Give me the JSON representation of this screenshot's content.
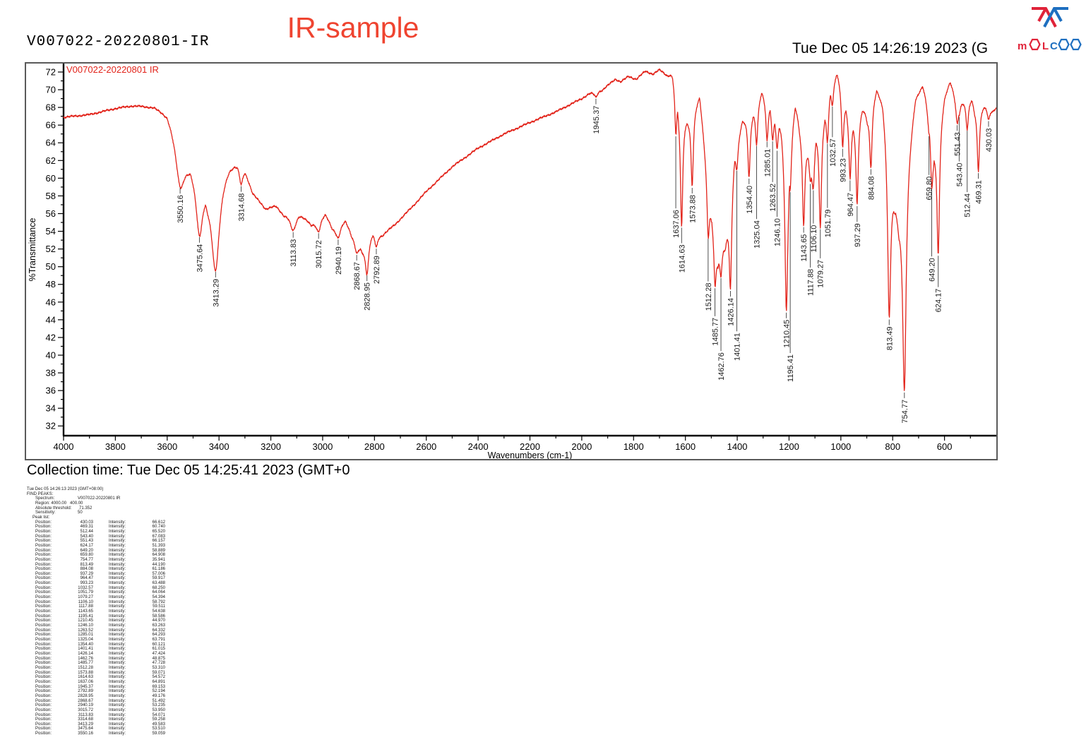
{
  "header": {
    "sample_id": "V007022-20220801-IR",
    "title": "IR-sample",
    "title_color": "#ef4430",
    "datetime": "Tue Dec 05 14:26:19 2023 (G"
  },
  "logo": {
    "name": "MOLCOO",
    "letters": [
      "m",
      "O",
      "L",
      "C",
      "O",
      "O"
    ],
    "red": "#e02339",
    "blue": "#1e6fc0"
  },
  "chart_data": {
    "type": "line",
    "legend": "V007022-20220801 IR",
    "series_name": "V007022-20220801 IR",
    "line_color": "#e2231a",
    "xlabel": "Wavenumbers (cm-1)",
    "ylabel": "%Transmittance",
    "x_range": [
      4000,
      400
    ],
    "x_reversed": true,
    "ylim": [
      32,
      72
    ],
    "x_major_ticks": [
      4000,
      3800,
      3600,
      3400,
      3200,
      3000,
      2800,
      2600,
      2400,
      2200,
      2000,
      1800,
      1600,
      1400,
      1200,
      1000,
      800,
      600
    ],
    "y_major_ticks": [
      32,
      34,
      36,
      38,
      40,
      42,
      44,
      46,
      48,
      50,
      52,
      54,
      56,
      58,
      60,
      62,
      64,
      66,
      68,
      70,
      72
    ],
    "grid": false,
    "legend_position": "top-left",
    "peaks": [
      {
        "position": 430.03,
        "intensity": 66.612
      },
      {
        "position": 469.31,
        "intensity": 60.74
      },
      {
        "position": 512.44,
        "intensity": 65.52
      },
      {
        "position": 543.4,
        "intensity": 67.083
      },
      {
        "position": 551.43,
        "intensity": 66.157
      },
      {
        "position": 624.17,
        "intensity": 51.393
      },
      {
        "position": 649.2,
        "intensity": 58.889
      },
      {
        "position": 659.8,
        "intensity": 64.908
      },
      {
        "position": 754.77,
        "intensity": 35.941
      },
      {
        "position": 813.49,
        "intensity": 44.19
      },
      {
        "position": 884.08,
        "intensity": 61.186
      },
      {
        "position": 937.29,
        "intensity": 57.006
      },
      {
        "position": 964.47,
        "intensity": 59.917
      },
      {
        "position": 993.23,
        "intensity": 63.488
      },
      {
        "position": 1032.57,
        "intensity": 68.25
      },
      {
        "position": 1051.79,
        "intensity": 64.064
      },
      {
        "position": 1079.27,
        "intensity": 54.394
      },
      {
        "position": 1106.1,
        "intensity": 58.792
      },
      {
        "position": 1117.88,
        "intensity": 59.511
      },
      {
        "position": 1143.65,
        "intensity": 54.638
      },
      {
        "position": 1195.41,
        "intensity": 58.586
      },
      {
        "position": 1210.45,
        "intensity": 44.97
      },
      {
        "position": 1246.1,
        "intensity": 63.263
      },
      {
        "position": 1263.52,
        "intensity": 64.332
      },
      {
        "position": 1285.01,
        "intensity": 64.293
      },
      {
        "position": 1325.04,
        "intensity": 63.791
      },
      {
        "position": 1354.4,
        "intensity": 60.121
      },
      {
        "position": 1401.41,
        "intensity": 61.015
      },
      {
        "position": 1426.14,
        "intensity": 47.424
      },
      {
        "position": 1462.76,
        "intensity": 48.875
      },
      {
        "position": 1485.77,
        "intensity": 47.728
      },
      {
        "position": 1512.28,
        "intensity": 53.31
      },
      {
        "position": 1573.88,
        "intensity": 59.071
      },
      {
        "position": 1614.63,
        "intensity": 54.572
      },
      {
        "position": 1637.06,
        "intensity": 64.891
      },
      {
        "position": 1945.37,
        "intensity": 69.153
      },
      {
        "position": 2792.89,
        "intensity": 52.194
      },
      {
        "position": 2828.95,
        "intensity": 49.176
      },
      {
        "position": 2868.67,
        "intensity": 51.492
      },
      {
        "position": 2940.19,
        "intensity": 53.235
      },
      {
        "position": 3015.72,
        "intensity": 53.95
      },
      {
        "position": 3113.83,
        "intensity": 54.071
      },
      {
        "position": 3314.68,
        "intensity": 59.258
      },
      {
        "position": 3413.29,
        "intensity": 49.583
      },
      {
        "position": 3475.64,
        "intensity": 53.51
      },
      {
        "position": 3550.16,
        "intensity": 59.059
      }
    ],
    "baseline_envelope": [
      [
        400,
        67.9
      ],
      [
        415,
        67.6
      ],
      [
        450,
        68.4
      ],
      [
        484,
        68.1
      ],
      [
        494,
        69.1
      ],
      [
        528,
        68.7
      ],
      [
        547,
        68.1
      ],
      [
        578,
        71.1
      ],
      [
        600,
        69.6
      ],
      [
        642,
        63.5
      ],
      [
        655,
        66.3
      ],
      [
        672,
        69.0
      ],
      [
        684,
        70.7
      ],
      [
        712,
        69.6
      ],
      [
        776,
        56.2
      ],
      [
        792,
        57.7
      ],
      [
        838,
        69.1
      ],
      [
        862,
        70.2
      ],
      [
        898,
        67.1
      ],
      [
        916,
        68.2
      ],
      [
        951,
        66.6
      ],
      [
        978,
        68.2
      ],
      [
        1004,
        71.3
      ],
      [
        1015,
        72.1
      ],
      [
        1042,
        70.1
      ],
      [
        1065,
        67.2
      ],
      [
        1096,
        65.2
      ],
      [
        1112,
        61.6
      ],
      [
        1130,
        63.6
      ],
      [
        1160,
        66.2
      ],
      [
        1176,
        68.6
      ],
      [
        1203,
        62.4
      ],
      [
        1230,
        66.6
      ],
      [
        1255,
        67.1
      ],
      [
        1275,
        68.6
      ],
      [
        1305,
        69.9
      ],
      [
        1340,
        67.6
      ],
      [
        1380,
        66.6
      ],
      [
        1412,
        62.6
      ],
      [
        1446,
        52.6
      ],
      [
        1474,
        50.7
      ],
      [
        1500,
        56.2
      ],
      [
        1545,
        69.4
      ],
      [
        1590,
        66.8
      ],
      [
        1625,
        68.2
      ],
      [
        1650,
        71.9
      ],
      [
        1670,
        71.7
      ],
      [
        1700,
        72.3
      ],
      [
        1725,
        71.8
      ],
      [
        1755,
        72.1
      ],
      [
        1790,
        71.2
      ],
      [
        1820,
        71.5
      ],
      [
        1850,
        70.9
      ],
      [
        1870,
        71.2
      ],
      [
        1920,
        70.0
      ],
      [
        1970,
        69.6
      ],
      [
        2000,
        69.0
      ],
      [
        2100,
        67.5
      ],
      [
        2200,
        66.3
      ],
      [
        2300,
        65.0
      ],
      [
        2400,
        63.4
      ],
      [
        2500,
        61.3
      ],
      [
        2600,
        58.5
      ],
      [
        2650,
        56.9
      ],
      [
        2720,
        54.8
      ],
      [
        2770,
        53.6
      ],
      [
        2812,
        53.8
      ],
      [
        2848,
        52.1
      ],
      [
        2888,
        53.6
      ],
      [
        2912,
        55.4
      ],
      [
        2962,
        54.6
      ],
      [
        2990,
        56.0
      ],
      [
        3045,
        54.8
      ],
      [
        3090,
        56.2
      ],
      [
        3150,
        56.0
      ],
      [
        3180,
        56.9
      ],
      [
        3220,
        56.6
      ],
      [
        3270,
        58.4
      ],
      [
        3300,
        61.0
      ],
      [
        3340,
        61.8
      ],
      [
        3360,
        61.7
      ],
      [
        3445,
        58.4
      ],
      [
        3520,
        61.8
      ],
      [
        3600,
        67.4
      ],
      [
        3650,
        68.1
      ],
      [
        3700,
        68.2
      ],
      [
        3740,
        68.2
      ],
      [
        3800,
        67.9
      ],
      [
        3900,
        67.2
      ],
      [
        4000,
        66.9
      ]
    ]
  },
  "footer": {
    "collection_time": "Collection time: Tue Dec 05 14:25:41 2023 (GMT+0"
  },
  "peak_report": {
    "timestamp": "Tue Dec 05 14:26:13 2023 (GMT+08:00)",
    "find_peaks_label": "FIND PEAKS:",
    "spectrum_label": "Spectrum:",
    "spectrum_value": "V007022-20220801 IR",
    "region_label": "Region:",
    "region_from": "4000.00",
    "region_to": "400.00",
    "threshold_label": "Absolute threshold:",
    "threshold_value": "71.352",
    "sensitivity_label": "Sensitivity:",
    "sensitivity_value": "50",
    "peak_list_label": "Peak list:",
    "position_label": "Position:",
    "intensity_label": "Intensity:"
  }
}
